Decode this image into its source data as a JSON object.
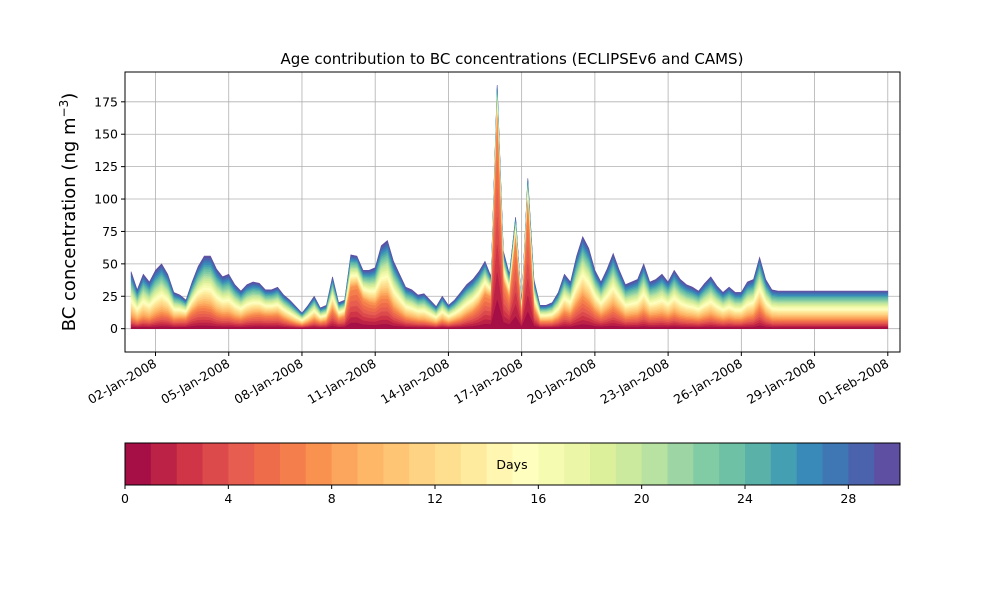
{
  "chart_data": {
    "type": "area",
    "title": "Age contribution to BC concentrations (ECLIPSEv6 and CAMS)",
    "ylabel": "BC concentration (ng m",
    "ylabel_sup": "−3",
    "ylabel_close": ")",
    "xlabel": "",
    "stacked": true,
    "grid": true,
    "ylim": [
      -18,
      198
    ],
    "xlim": [
      "2007-12-31T18:00",
      "2008-02-01T12:00"
    ],
    "yticks": [
      0,
      25,
      50,
      75,
      100,
      125,
      150,
      175
    ],
    "xticks": [
      "2008-01-02",
      "2008-01-05",
      "2008-01-08",
      "2008-01-11",
      "2008-01-14",
      "2008-01-17",
      "2008-01-20",
      "2008-01-23",
      "2008-01-26",
      "2008-01-29",
      "2008-02-01"
    ],
    "xtick_labels": [
      "02-Jan-2008",
      "05-Jan-2008",
      "08-Jan-2008",
      "11-Jan-2008",
      "14-Jan-2008",
      "17-Jan-2008",
      "20-Jan-2008",
      "23-Jan-2008",
      "26-Jan-2008",
      "29-Jan-2008",
      "01-Feb-2008"
    ],
    "series_axis": "Days",
    "total": {
      "x": [
        "2008-01-01T00:00",
        "2008-01-01T06:00",
        "2008-01-01T12:00",
        "2008-01-01T18:00",
        "2008-01-02T00:00",
        "2008-01-02T06:00",
        "2008-01-02T12:00",
        "2008-01-02T18:00",
        "2008-01-03T00:00",
        "2008-01-03T06:00",
        "2008-01-03T12:00",
        "2008-01-03T18:00",
        "2008-01-04T00:00",
        "2008-01-04T06:00",
        "2008-01-04T12:00",
        "2008-01-04T18:00",
        "2008-01-05T00:00",
        "2008-01-05T06:00",
        "2008-01-05T12:00",
        "2008-01-05T18:00",
        "2008-01-06T00:00",
        "2008-01-06T06:00",
        "2008-01-06T12:00",
        "2008-01-06T18:00",
        "2008-01-07T00:00",
        "2008-01-07T06:00",
        "2008-01-07T12:00",
        "2008-01-07T18:00",
        "2008-01-08T00:00",
        "2008-01-08T06:00",
        "2008-01-08T12:00",
        "2008-01-08T18:00",
        "2008-01-09T00:00",
        "2008-01-09T06:00",
        "2008-01-09T12:00",
        "2008-01-09T18:00",
        "2008-01-10T00:00",
        "2008-01-10T06:00",
        "2008-01-10T12:00",
        "2008-01-10T18:00",
        "2008-01-11T00:00",
        "2008-01-11T06:00",
        "2008-01-11T12:00",
        "2008-01-11T18:00",
        "2008-01-12T00:00",
        "2008-01-12T06:00",
        "2008-01-12T12:00",
        "2008-01-12T18:00",
        "2008-01-13T00:00",
        "2008-01-13T06:00",
        "2008-01-13T12:00",
        "2008-01-13T18:00",
        "2008-01-14T00:00",
        "2008-01-14T06:00",
        "2008-01-14T12:00",
        "2008-01-14T18:00",
        "2008-01-15T00:00",
        "2008-01-15T06:00",
        "2008-01-15T12:00",
        "2008-01-15T18:00",
        "2008-01-16T00:00",
        "2008-01-16T06:00",
        "2008-01-16T12:00",
        "2008-01-16T18:00",
        "2008-01-17T00:00",
        "2008-01-17T06:00",
        "2008-01-17T12:00",
        "2008-01-17T18:00",
        "2008-01-18T00:00",
        "2008-01-18T06:00",
        "2008-01-18T12:00",
        "2008-01-18T18:00",
        "2008-01-19T00:00",
        "2008-01-19T06:00",
        "2008-01-19T12:00",
        "2008-01-19T18:00",
        "2008-01-20T00:00",
        "2008-01-20T06:00",
        "2008-01-20T12:00",
        "2008-01-20T18:00",
        "2008-01-21T00:00",
        "2008-01-21T06:00",
        "2008-01-21T12:00",
        "2008-01-21T18:00",
        "2008-01-22T00:00",
        "2008-01-22T06:00",
        "2008-01-22T12:00",
        "2008-01-22T18:00",
        "2008-01-23T00:00",
        "2008-01-23T06:00",
        "2008-01-23T12:00",
        "2008-01-23T18:00",
        "2008-01-24T00:00",
        "2008-01-24T06:00",
        "2008-01-24T12:00",
        "2008-01-24T18:00",
        "2008-01-25T00:00",
        "2008-01-25T06:00",
        "2008-01-25T12:00",
        "2008-01-25T18:00",
        "2008-01-26T00:00",
        "2008-01-26T06:00",
        "2008-01-26T12:00",
        "2008-01-26T18:00",
        "2008-01-27T00:00",
        "2008-01-27T06:00",
        "2008-01-27T12:00",
        "2008-01-27T18:00",
        "2008-01-28T00:00",
        "2008-01-28T06:00",
        "2008-01-28T12:00",
        "2008-01-28T18:00",
        "2008-01-29T00:00",
        "2008-01-29T06:00",
        "2008-01-29T12:00",
        "2008-01-29T18:00",
        "2008-01-30T00:00",
        "2008-01-30T06:00",
        "2008-01-30T12:00",
        "2008-01-30T18:00",
        "2008-01-31T00:00",
        "2008-01-31T06:00",
        "2008-01-31T12:00",
        "2008-01-31T18:00",
        "2008-02-01T00:00"
      ],
      "y": [
        44,
        30,
        42,
        36,
        45,
        50,
        42,
        28,
        26,
        22,
        36,
        48,
        56,
        56,
        46,
        40,
        42,
        34,
        29,
        34,
        36,
        35,
        30,
        30,
        32,
        26,
        22,
        17,
        12,
        18,
        25,
        16,
        18,
        40,
        20,
        22,
        57,
        56,
        45,
        45,
        47,
        64,
        68,
        52,
        42,
        32,
        30,
        26,
        27,
        22,
        17,
        25,
        18,
        22,
        28,
        34,
        38,
        44,
        52,
        40,
        188,
        60,
        42,
        86,
        18,
        116,
        38,
        18,
        18,
        20,
        28,
        42,
        36,
        56,
        71,
        62,
        45,
        36,
        46,
        58,
        45,
        34,
        36,
        38,
        50,
        36,
        38,
        42,
        36,
        45,
        38,
        34,
        32,
        29,
        35,
        40,
        33,
        28,
        32,
        28,
        28,
        36,
        38,
        55,
        38,
        30,
        29,
        29,
        29,
        29,
        29,
        29,
        29,
        29,
        29,
        29,
        29,
        29,
        29,
        29,
        29,
        29,
        29,
        29,
        29
      ]
    },
    "fresh_fraction": [
      0.2,
      0.2,
      0.2,
      0.2,
      0.22,
      0.24,
      0.26,
      0.26,
      0.3,
      0.36,
      0.36,
      0.34,
      0.3,
      0.28,
      0.26,
      0.26,
      0.25,
      0.25,
      0.26,
      0.28,
      0.3,
      0.32,
      0.34,
      0.34,
      0.33,
      0.3,
      0.26,
      0.24,
      0.24,
      0.25,
      0.28,
      0.3,
      0.32,
      0.36,
      0.38,
      0.42,
      0.55,
      0.58,
      0.5,
      0.44,
      0.4,
      0.38,
      0.36,
      0.3,
      0.28,
      0.26,
      0.24,
      0.24,
      0.22,
      0.22,
      0.22,
      0.24,
      0.24,
      0.26,
      0.26,
      0.3,
      0.34,
      0.4,
      0.5,
      0.6,
      0.86,
      0.6,
      0.55,
      0.8,
      0.5,
      0.82,
      0.4,
      0.3,
      0.3,
      0.28,
      0.28,
      0.3,
      0.3,
      0.32,
      0.34,
      0.32,
      0.3,
      0.28,
      0.28,
      0.28,
      0.28,
      0.26,
      0.26,
      0.26,
      0.26,
      0.26,
      0.26,
      0.25,
      0.25,
      0.25,
      0.24,
      0.24,
      0.24,
      0.24,
      0.24,
      0.24,
      0.24,
      0.24,
      0.24,
      0.24,
      0.24,
      0.24,
      0.26,
      0.3,
      0.26,
      0.24,
      0.24,
      0.24,
      0.24,
      0.24,
      0.24,
      0.24,
      0.24,
      0.24,
      0.24,
      0.24,
      0.24,
      0.24,
      0.24,
      0.24,
      0.24,
      0.24,
      0.24,
      0.24,
      0.24
    ],
    "colorbar": {
      "label": "Days",
      "range": [
        0,
        30
      ],
      "ticks": [
        0,
        4,
        8,
        12,
        16,
        20,
        24,
        28
      ],
      "colors": [
        "#a50f45",
        "#bc2146",
        "#cf3447",
        "#dc4a4c",
        "#e75d4f",
        "#ef6c4b",
        "#f57f4c",
        "#f9924f",
        "#fca55d",
        "#fdb767",
        "#fec575",
        "#fed384",
        "#fedf8f",
        "#feeb9d",
        "#fef6b1",
        "#fefebe",
        "#f5fbb1",
        "#ebf7a6",
        "#dcf09c",
        "#cbea9d",
        "#b7e2a1",
        "#9dd6a4",
        "#82cca5",
        "#6ec1a5",
        "#5ab1a8",
        "#459fb3",
        "#3a8ab9",
        "#3f76b4",
        "#4b63ad",
        "#5e4fa2"
      ]
    }
  }
}
